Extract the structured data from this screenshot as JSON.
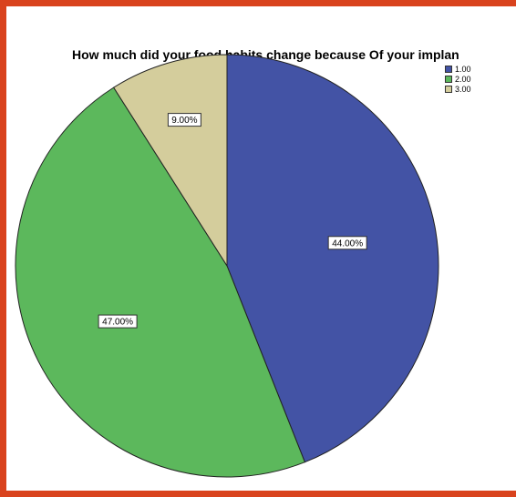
{
  "chart_data": {
    "type": "pie",
    "title": "How much did your food habits change because Of your implan",
    "slices": [
      {
        "label": "1.00",
        "value": 44.0,
        "display": "44.00%",
        "color": "#4353a5"
      },
      {
        "label": "2.00",
        "value": 47.0,
        "display": "47.00%",
        "color": "#5cb85c"
      },
      {
        "label": "3.00",
        "value": 9.0,
        "display": "9.00%",
        "color": "#d4cd9c"
      }
    ],
    "start_angle": "12 o'clock",
    "direction": "clockwise",
    "legend_position": "top-right",
    "border_color": "#d9431e"
  }
}
